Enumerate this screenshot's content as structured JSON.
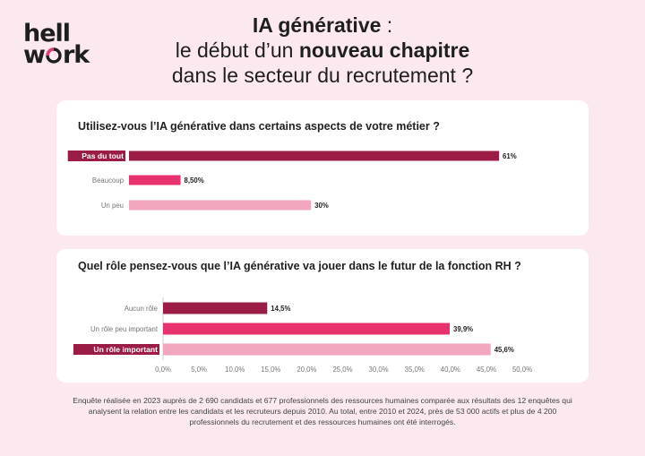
{
  "logo": {
    "line1": "hell",
    "line2": "w",
    "line2_end": "rk",
    "ring_color": "#e83e73"
  },
  "title": {
    "line1_bold": "IA générative",
    "line1_rest": " :",
    "line2_prefix": "le début d’un ",
    "line2_bold": "nouveau chapitre",
    "line3": "dans le secteur du recrutement ?"
  },
  "chart_data": [
    {
      "type": "bar",
      "orientation": "horizontal",
      "title": "Utilisez-vous l’IA générative dans certains aspects de votre métier ?",
      "categories": [
        "Pas du tout",
        "Beaucoup",
        "Un peu"
      ],
      "values": [
        61,
        8.5,
        30
      ],
      "value_labels": [
        "61%",
        "8,50%",
        "30%"
      ],
      "highlighted": "Pas du tout",
      "colors": [
        "#9b1c45",
        "#e8326d",
        "#f2a7bf"
      ],
      "xlim": [
        0,
        70
      ]
    },
    {
      "type": "bar",
      "orientation": "horizontal",
      "title": "Quel rôle pensez-vous que l’IA générative va jouer dans le futur de la fonction RH ?",
      "categories": [
        "Aucun rôle",
        "Un rôle peu important",
        "Un rôle important"
      ],
      "values": [
        14.5,
        39.9,
        45.6
      ],
      "value_labels": [
        "14,5%",
        "39,9%",
        "45,6%"
      ],
      "highlighted": "Un rôle important",
      "colors": [
        "#9b1c45",
        "#e8326d",
        "#f2a7bf"
      ],
      "xlim": [
        0,
        50
      ],
      "xticks": [
        "0,0%",
        "5,0%",
        "10,0%",
        "15,0%",
        "20,0%",
        "25,0%",
        "30,0%",
        "35,0%",
        "40,0%",
        "45,0%",
        "50,0%"
      ]
    }
  ],
  "footnote": "Enquête réalisée en 2023 auprès de 2 690 candidats et 677 professionnels des ressources humaines comparée aux résultats des 12 enquêtes qui analysent la relation entre les candidats et les recruteurs depuis 2010. Au total, entre 2010 et 2024, près de 53 000 actifs et plus de 4 200 professionnels du recrutement et des ressources humaines ont été interrogés."
}
